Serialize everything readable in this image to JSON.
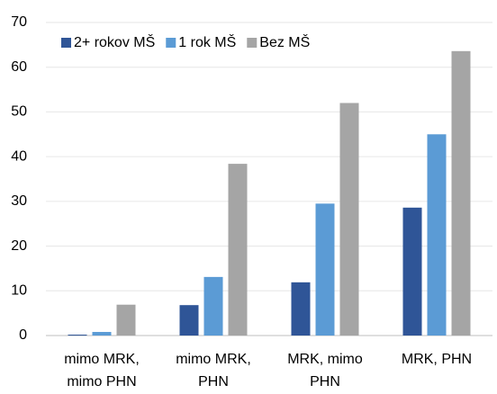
{
  "chart_data": {
    "type": "bar",
    "categories": [
      "mimo MRK,\nmimo PHN",
      "mimo MRK,\nPHN",
      "MRK, mimo\nPHN",
      "MRK, PHN"
    ],
    "series": [
      {
        "name": "2+ rokov MŠ",
        "color": "#2f5597",
        "values": [
          0.2,
          6.8,
          11.9,
          28.6
        ]
      },
      {
        "name": "1 rok MŠ",
        "color": "#5b9bd5",
        "values": [
          0.8,
          13.1,
          29.5,
          45.0
        ]
      },
      {
        "name": "Bez MŠ",
        "color": "#a5a5a5",
        "values": [
          6.9,
          38.4,
          52.0,
          63.6
        ]
      }
    ],
    "ylim": [
      0,
      70
    ],
    "yticks": [
      0,
      10,
      20,
      30,
      40,
      50,
      60,
      70
    ],
    "grid": true,
    "legend": "top-left"
  }
}
